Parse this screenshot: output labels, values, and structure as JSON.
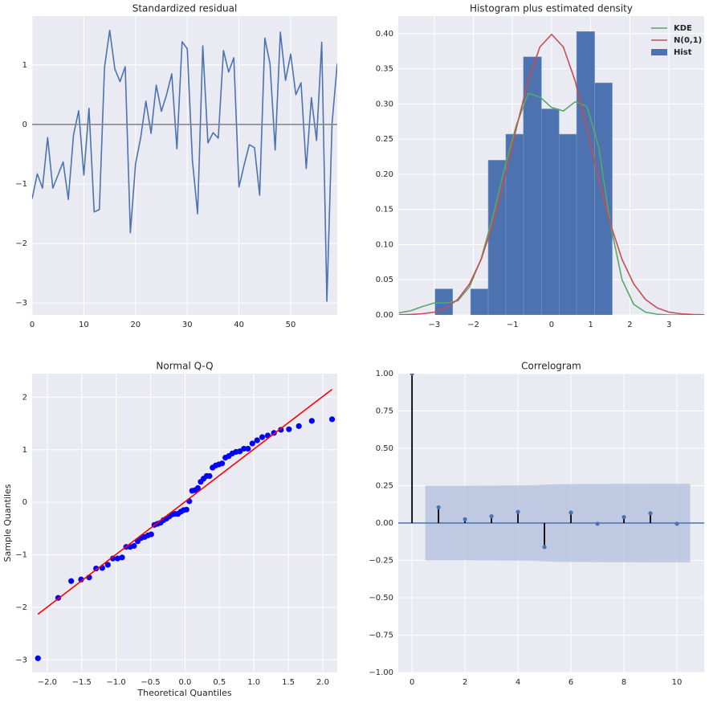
{
  "chart_data": [
    {
      "type": "line",
      "title": "Standardized residual",
      "x": [
        0,
        1,
        2,
        3,
        4,
        5,
        6,
        7,
        8,
        9,
        10,
        11,
        12,
        13,
        14,
        15,
        16,
        17,
        18,
        19,
        20,
        21,
        22,
        23,
        24,
        25,
        26,
        27,
        28,
        29,
        30,
        31,
        32,
        33,
        34,
        35,
        36,
        37,
        38,
        39,
        40,
        41,
        42,
        43,
        44,
        45,
        46,
        47,
        48,
        49,
        50,
        51,
        52,
        53,
        54,
        55,
        56,
        57,
        58,
        59
      ],
      "values": [
        -1.25,
        -0.83,
        -1.07,
        -0.22,
        -1.07,
        -0.85,
        -0.63,
        -1.26,
        -0.18,
        0.23,
        -0.85,
        0.27,
        -1.47,
        -1.43,
        0.96,
        1.58,
        0.93,
        0.72,
        0.97,
        -1.82,
        -0.66,
        -0.22,
        0.39,
        -0.15,
        0.66,
        0.22,
        0.5,
        0.85,
        -0.41,
        1.39,
        1.27,
        -0.61,
        -1.5,
        1.32,
        -0.31,
        -0.14,
        -0.23,
        1.24,
        0.88,
        1.12,
        -1.05,
        -0.68,
        -0.34,
        -0.39,
        -1.19,
        1.45,
        1.02,
        -0.43,
        1.55,
        0.74,
        1.18,
        0.5,
        0.7,
        -0.74,
        0.45,
        -0.27,
        1.38,
        -2.97,
        0.02,
        1.02
      ],
      "color": "#4c72b0",
      "hline": 0,
      "hline_color": "#808080",
      "xlim": [
        0,
        59
      ],
      "xticks": [
        0,
        10,
        20,
        30,
        40,
        50
      ],
      "ylim": [
        -3.2,
        1.82
      ],
      "yticks": [
        {
          "value": -3,
          "label": "−3"
        },
        {
          "value": -2,
          "label": "−2"
        },
        {
          "value": -1,
          "label": "−1"
        },
        0,
        1
      ],
      "grid": true
    },
    {
      "type": "histogram",
      "title": "Histogram plus estimated density",
      "hist": {
        "name": "Hist",
        "color": "#4c72b0",
        "bins": [
          -2.98,
          -2.53,
          -2.07,
          -1.62,
          -1.17,
          -0.72,
          -0.26,
          0.19,
          0.64,
          1.1,
          1.55
        ],
        "values": [
          0.037,
          0,
          0.037,
          0.22,
          0.257,
          0.367,
          0.293,
          0.257,
          0.403,
          0.33
        ]
      },
      "x": [
        -3.9,
        -3.6,
        -3.3,
        -3.0,
        -2.7,
        -2.4,
        -2.1,
        -1.8,
        -1.5,
        -1.2,
        -0.9,
        -0.6,
        -0.3,
        0,
        0.3,
        0.6,
        0.9,
        1.2,
        1.5,
        1.8,
        2.1,
        2.4,
        2.7,
        3.0,
        3.3,
        3.6,
        3.9
      ],
      "series": [
        {
          "name": "KDE",
          "color": "#55a868",
          "values": [
            0.003,
            0.006,
            0.012,
            0.017,
            0.017,
            0.02,
            0.04,
            0.08,
            0.14,
            0.21,
            0.27,
            0.315,
            0.31,
            0.295,
            0.29,
            0.303,
            0.297,
            0.24,
            0.13,
            0.05,
            0.015,
            0.004,
            0.001,
            0,
            0,
            0,
            0
          ]
        },
        {
          "name": "N(0,1)",
          "color": "#c44e52",
          "values": [
            0.0002,
            0.0006,
            0.0017,
            0.004,
            0.01,
            0.022,
            0.044,
            0.079,
            0.13,
            0.194,
            0.266,
            0.333,
            0.381,
            0.399,
            0.381,
            0.333,
            0.266,
            0.194,
            0.13,
            0.079,
            0.044,
            0.022,
            0.01,
            0.004,
            0.0017,
            0.0006,
            0.0002
          ]
        }
      ],
      "legend": "upper right",
      "xlim": [
        -3.92,
        3.9
      ],
      "xticks": [
        {
          "value": -3,
          "label": "−3"
        },
        {
          "value": -2,
          "label": "−2"
        },
        {
          "value": -1,
          "label": "−1"
        },
        0,
        1,
        2,
        3
      ],
      "ylim": [
        0,
        0.425
      ],
      "yticks": [
        {
          "value": 0,
          "label": "0.00"
        },
        0.05,
        {
          "value": 0.1,
          "label": "0.10"
        },
        0.15,
        {
          "value": 0.2,
          "label": "0.20"
        },
        0.25,
        {
          "value": 0.3,
          "label": "0.30"
        },
        0.35,
        {
          "value": 0.4,
          "label": "0.40"
        }
      ],
      "grid": true
    },
    {
      "type": "scatter",
      "title": "Normal Q-Q",
      "xlabel": "Theoretical Quantiles",
      "ylabel": "Sample Quantiles",
      "x": [
        -2.135,
        -1.841,
        -1.653,
        -1.509,
        -1.392,
        -1.291,
        -1.202,
        -1.121,
        -1.047,
        -0.978,
        -0.914,
        -0.854,
        -0.796,
        -0.741,
        -0.687,
        -0.636,
        -0.586,
        -0.538,
        -0.491,
        -0.445,
        -0.4,
        -0.356,
        -0.313,
        -0.27,
        -0.228,
        -0.186,
        -0.144,
        -0.103,
        -0.062,
        -0.021,
        0.021,
        0.062,
        0.103,
        0.144,
        0.186,
        0.228,
        0.27,
        0.313,
        0.356,
        0.4,
        0.445,
        0.491,
        0.538,
        0.586,
        0.636,
        0.687,
        0.741,
        0.796,
        0.854,
        0.914,
        0.978,
        1.047,
        1.121,
        1.202,
        1.291,
        1.392,
        1.509,
        1.653,
        1.841,
        2.135
      ],
      "values": [
        -2.97,
        -1.82,
        -1.5,
        -1.47,
        -1.43,
        -1.26,
        -1.25,
        -1.19,
        -1.07,
        -1.07,
        -1.05,
        -0.85,
        -0.85,
        -0.83,
        -0.74,
        -0.68,
        -0.66,
        -0.63,
        -0.61,
        -0.43,
        -0.41,
        -0.39,
        -0.34,
        -0.31,
        -0.27,
        -0.23,
        -0.22,
        -0.22,
        -0.18,
        -0.15,
        -0.14,
        0.02,
        0.22,
        0.23,
        0.27,
        0.39,
        0.45,
        0.5,
        0.5,
        0.66,
        0.7,
        0.72,
        0.74,
        0.85,
        0.88,
        0.93,
        0.96,
        0.97,
        1.02,
        1.02,
        1.12,
        1.18,
        1.24,
        1.27,
        1.32,
        1.38,
        1.39,
        1.45,
        1.55,
        1.58
      ],
      "color": "#0000ff",
      "line": {
        "x": [
          -2.135,
          2.135
        ],
        "values": [
          -2.13,
          2.15
        ],
        "color": "#ff0000"
      },
      "xlim": [
        -2.22,
        2.21
      ],
      "xticks": [
        {
          "value": -2,
          "label": "−2.0"
        },
        {
          "value": -1.5,
          "label": "−1.5"
        },
        {
          "value": -1,
          "label": "−1.0"
        },
        {
          "value": -0.5,
          "label": "−0.5"
        },
        {
          "value": 0,
          "label": "0.0"
        },
        0.5,
        {
          "value": 1,
          "label": "1.0"
        },
        1.5,
        {
          "value": 2,
          "label": "2.0"
        }
      ],
      "ylim": [
        -3.24,
        2.45
      ],
      "yticks": [
        {
          "value": -3,
          "label": "−3"
        },
        {
          "value": -2,
          "label": "−2"
        },
        {
          "value": -1,
          "label": "−1"
        },
        0,
        1,
        2
      ],
      "grid": true
    },
    {
      "type": "stem",
      "title": "Correlogram",
      "x": [
        0,
        1,
        2,
        3,
        4,
        5,
        6,
        7,
        8,
        9,
        10
      ],
      "values": [
        1,
        0.105,
        0.025,
        0.045,
        0.075,
        -0.16,
        0.07,
        -0.005,
        0.04,
        0.065,
        -0.005
      ],
      "color": "#4c72b0",
      "stem_color": "#000000",
      "hline": 0,
      "band": {
        "color": "#b0bedc",
        "x": [
          0.5,
          1.5,
          2.5,
          3.5,
          4.5,
          5.5,
          6.5,
          7.5,
          8.5,
          9.5,
          10.5
        ],
        "upper": [
          0.25,
          0.25,
          0.251,
          0.252,
          0.253,
          0.26,
          0.261,
          0.262,
          0.262,
          0.263,
          0.263
        ],
        "lower": [
          -0.25,
          -0.25,
          -0.251,
          -0.252,
          -0.253,
          -0.26,
          -0.261,
          -0.262,
          -0.262,
          -0.263,
          -0.263
        ]
      },
      "xlim": [
        -0.52,
        11.03
      ],
      "xticks": [
        0,
        2,
        4,
        6,
        8,
        10
      ],
      "ylim": [
        -1,
        1
      ],
      "yticks": [
        {
          "value": -1,
          "label": "−1.00"
        },
        {
          "value": -0.75,
          "label": "−0.75"
        },
        {
          "value": -0.5,
          "label": "−0.50"
        },
        {
          "value": -0.25,
          "label": "−0.25"
        },
        {
          "value": 0,
          "label": "0.00"
        },
        0.25,
        {
          "value": 0.5,
          "label": "0.50"
        },
        0.75,
        {
          "value": 1,
          "label": "1.00"
        }
      ],
      "grid": true
    }
  ]
}
